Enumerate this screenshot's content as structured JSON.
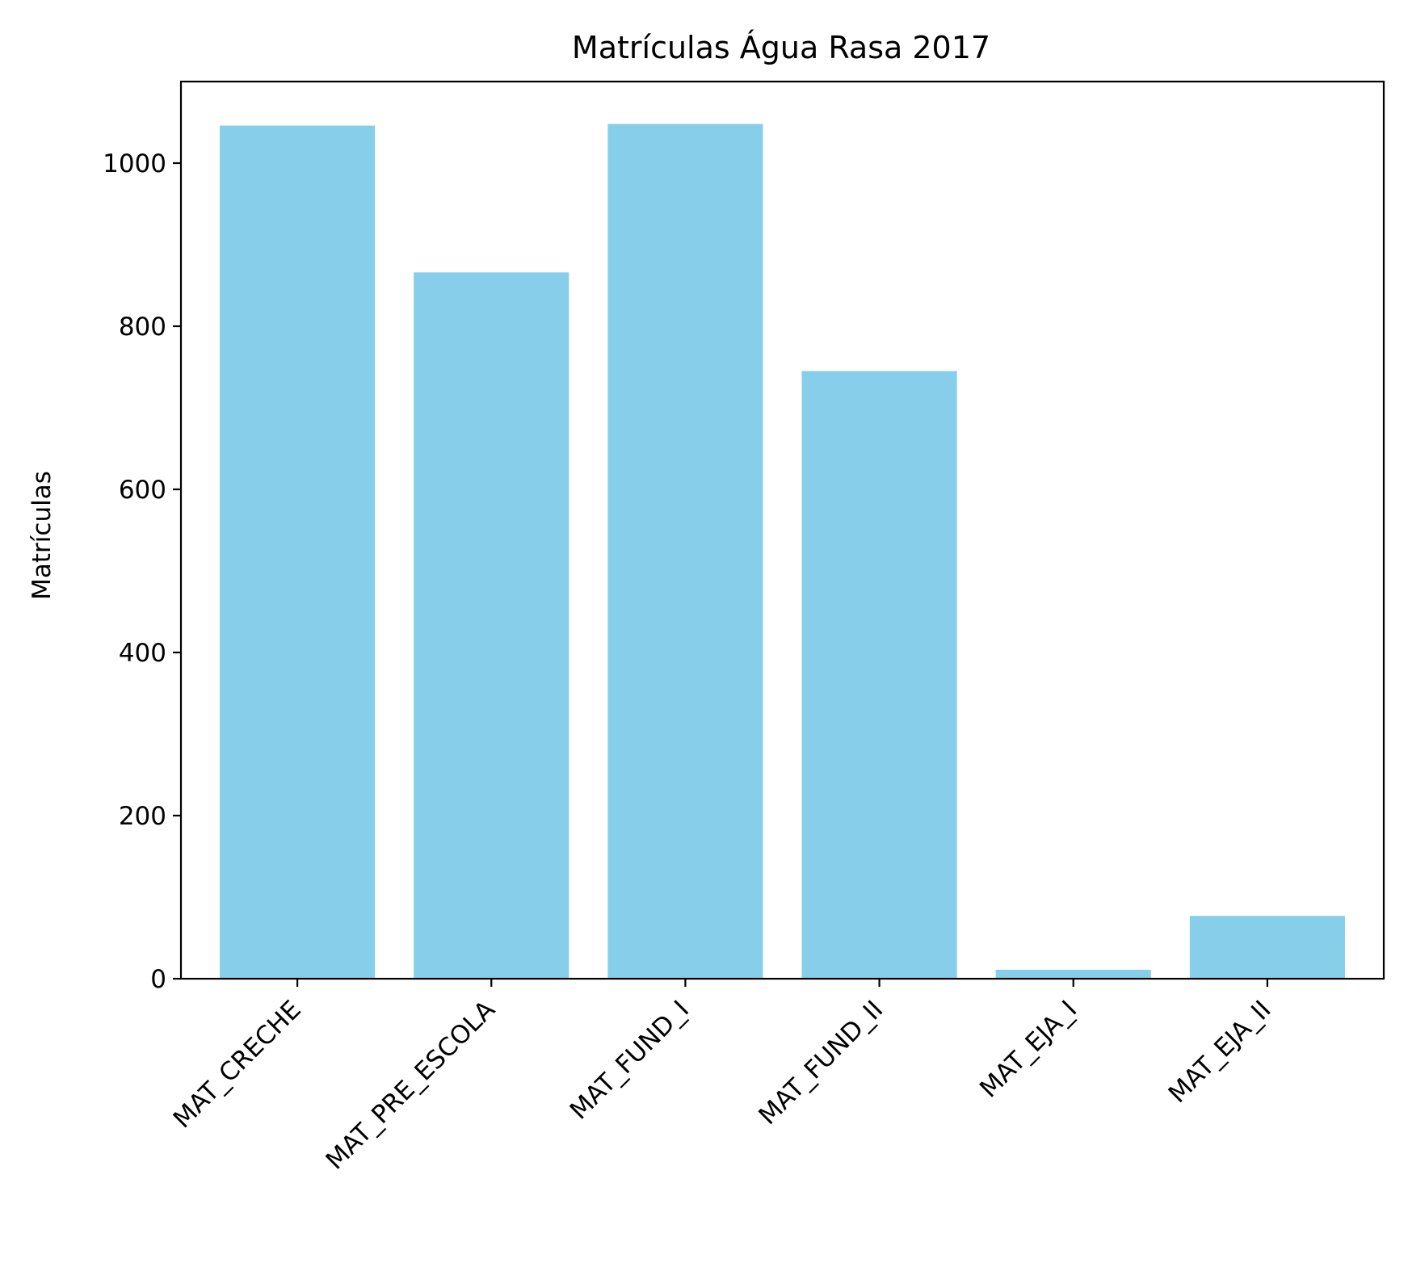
{
  "chart_data": {
    "type": "bar",
    "title": "Matrículas Água Rasa 2017",
    "xlabel": "",
    "ylabel": "Matrículas",
    "categories": [
      "MAT_CRECHE",
      "MAT_PRE_ESCOLA",
      "MAT_FUND_I",
      "MAT_FUND_II",
      "MAT_EJA_I",
      "MAT_EJA_II"
    ],
    "values": [
      1046,
      866,
      1048,
      745,
      11,
      77
    ],
    "yticks": [
      0,
      200,
      400,
      600,
      800,
      1000
    ],
    "ylim": [
      0,
      1100
    ],
    "grid": false,
    "colors": {
      "bar": "#87ceeb",
      "axis": "#000000",
      "background": "#ffffff"
    }
  }
}
